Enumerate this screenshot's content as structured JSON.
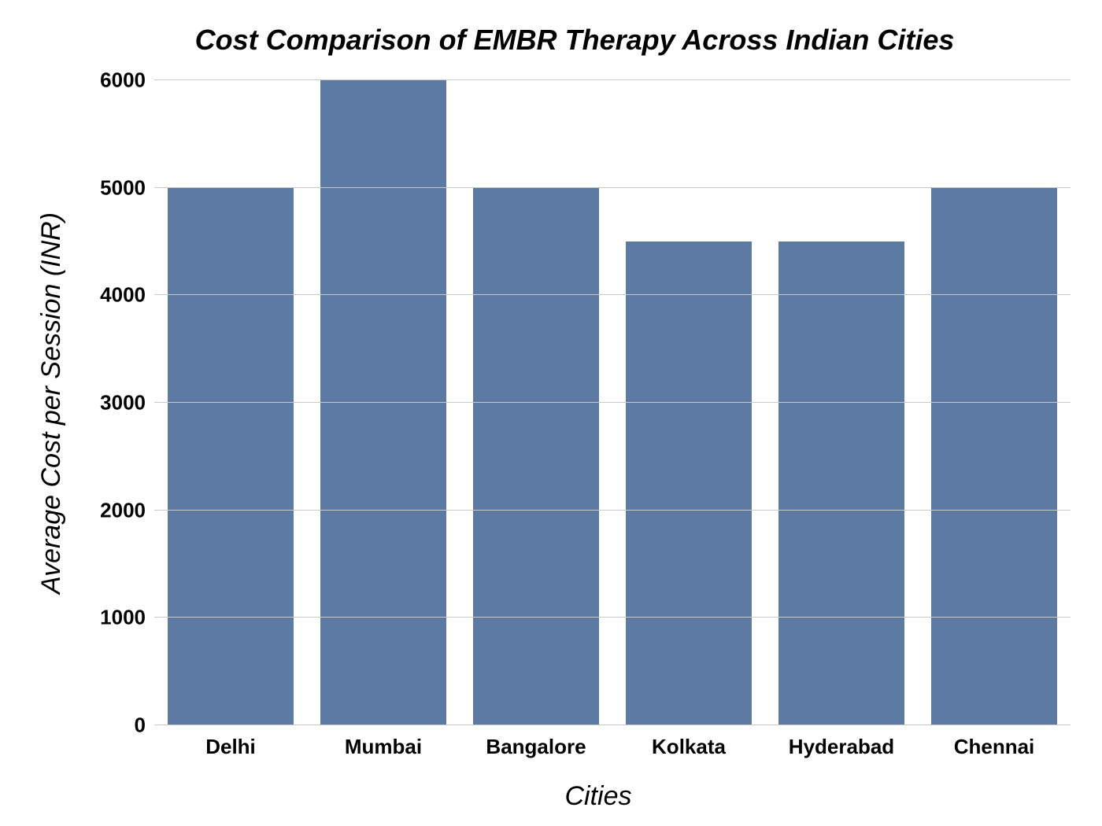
{
  "chart": {
    "type": "bar",
    "title": "Cost Comparison of EMBR Therapy Across Indian Cities",
    "title_fontsize": 36,
    "title_fontstyle": "italic bold",
    "xlabel": "Cities",
    "ylabel": "Average Cost per Session (INR)",
    "axis_label_fontsize": 34,
    "axis_label_fontstyle": "italic",
    "tick_fontsize": 26,
    "tick_fontweight": "bold",
    "categories": [
      "Delhi",
      "Mumbai",
      "Bangalore",
      "Kolkata",
      "Hyderabad",
      "Chennai"
    ],
    "values": [
      5000,
      6000,
      5000,
      4500,
      4500,
      5000
    ],
    "bar_color": "#5d7aa3",
    "bar_width": 0.82,
    "background_color": "#ffffff",
    "grid_color": "#c9c9c9",
    "ylim": [
      0,
      6000
    ],
    "ytick_step": 1000,
    "yticks": [
      0,
      1000,
      2000,
      3000,
      4000,
      5000,
      6000
    ],
    "grid_on": true,
    "text_color": "#000000"
  }
}
